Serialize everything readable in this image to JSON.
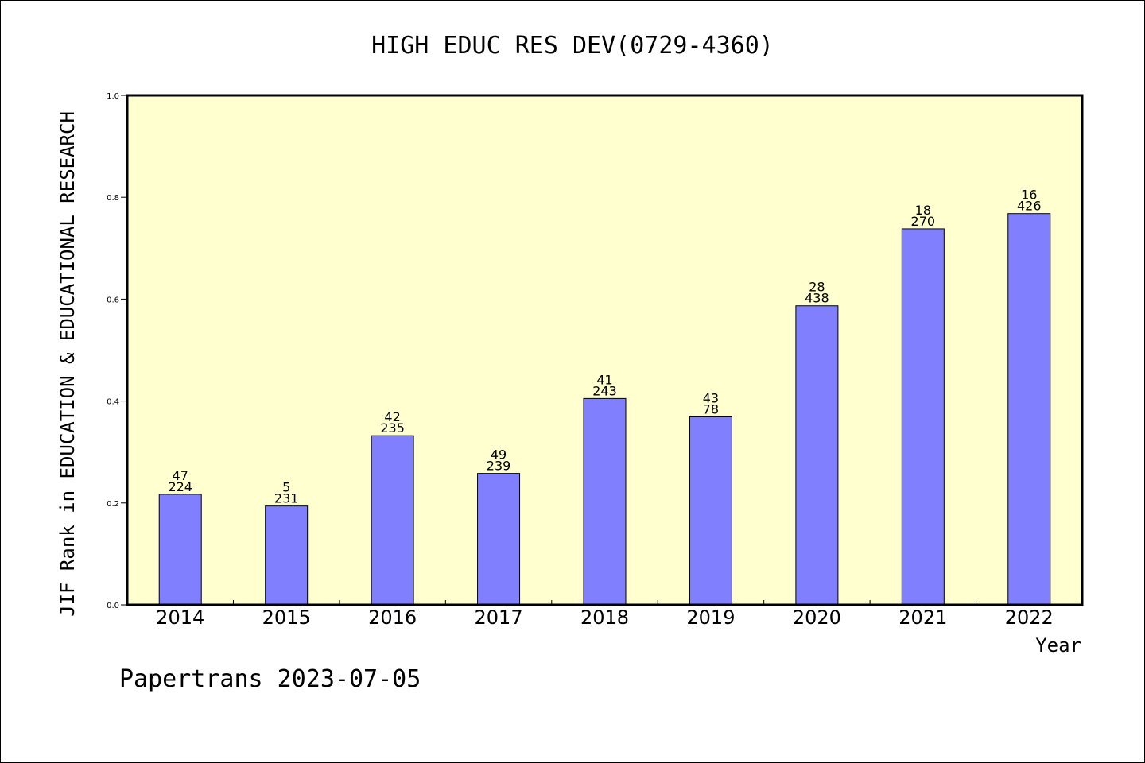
{
  "chart_data": {
    "type": "bar",
    "title": "HIGH EDUC RES DEV(0729-4360)",
    "ylabel": "JIF Rank in EDUCATION & EDUCATIONAL RESEARCH",
    "xlabel": "Year",
    "categories": [
      "2014",
      "2015",
      "2016",
      "2017",
      "2018",
      "2019",
      "2020",
      "2021",
      "2022"
    ],
    "values": [
      0.217,
      0.194,
      0.332,
      0.258,
      0.405,
      0.369,
      0.587,
      0.738,
      0.768
    ],
    "labels_top": [
      "47",
      "5",
      "42",
      "49",
      "41",
      "43",
      "28",
      "18",
      "16"
    ],
    "labels_bottom": [
      "224",
      "231",
      "235",
      "239",
      "243",
      "78",
      "438",
      "270",
      "426"
    ],
    "ylim": [
      0,
      1.0
    ],
    "yticks": [
      "0.0",
      "0.2",
      "0.4",
      "0.6",
      "0.8",
      "1.0"
    ],
    "grid": false,
    "colors": {
      "plot_background": "#FFFFD0",
      "bar_fill": "#8080FF",
      "bar_stroke": "#000000"
    }
  },
  "footer": {
    "text": "Papertrans 2023-07-05"
  }
}
